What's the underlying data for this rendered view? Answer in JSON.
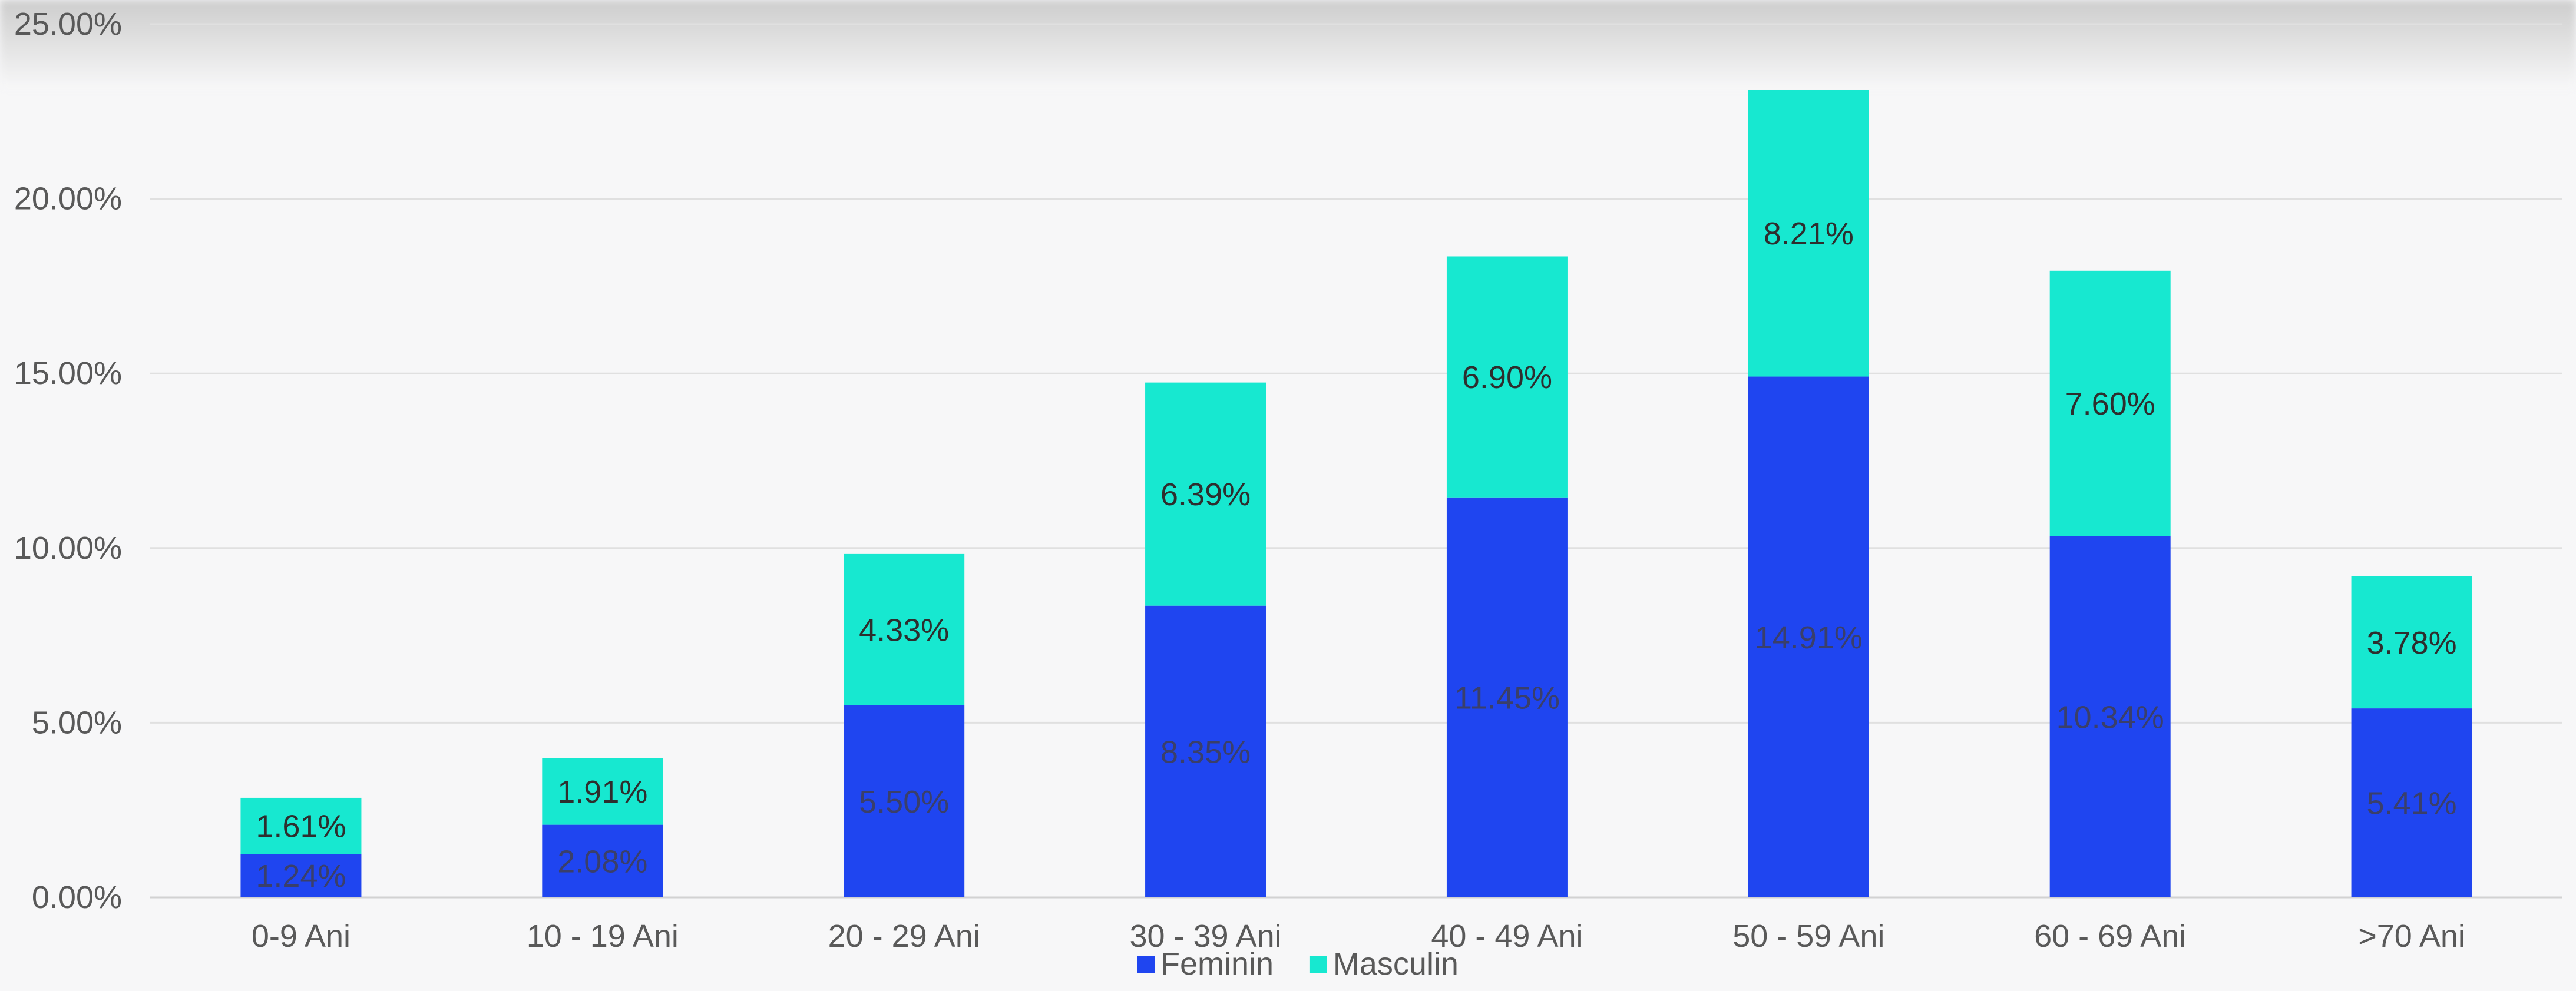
{
  "chart_data": {
    "type": "bar",
    "stacked": true,
    "title": "",
    "xlabel": "",
    "ylabel": "",
    "ylim": [
      0,
      25
    ],
    "y_ticks": [
      "0.00%",
      "5.00%",
      "10.00%",
      "15.00%",
      "20.00%",
      "25.00%"
    ],
    "y_tick_values": [
      0,
      5,
      10,
      15,
      20,
      25
    ],
    "grid": true,
    "legend_position": "bottom",
    "categories": [
      "0-9 Ani",
      "10 - 19 Ani",
      "20 - 29 Ani",
      "30 - 39 Ani",
      "40 - 49 Ani",
      "50 - 59 Ani",
      "60 - 69 Ani",
      ">70 Ani"
    ],
    "series": [
      {
        "name": "Feminin",
        "color": "#1f45f0",
        "values": [
          1.24,
          2.08,
          5.5,
          8.35,
          11.45,
          14.91,
          10.34,
          5.41
        ],
        "labels": [
          "1.24%",
          "2.08%",
          "5.50%",
          "8.35%",
          "11.45%",
          "14.91%",
          "10.34%",
          "5.41%"
        ]
      },
      {
        "name": "Masculin",
        "color": "#17e8d0",
        "values": [
          1.61,
          1.91,
          4.33,
          6.39,
          6.9,
          8.21,
          7.6,
          3.78
        ],
        "labels": [
          "1.61%",
          "1.91%",
          "4.33%",
          "6.39%",
          "6.90%",
          "8.21%",
          "7.60%",
          "3.78%"
        ]
      }
    ]
  }
}
